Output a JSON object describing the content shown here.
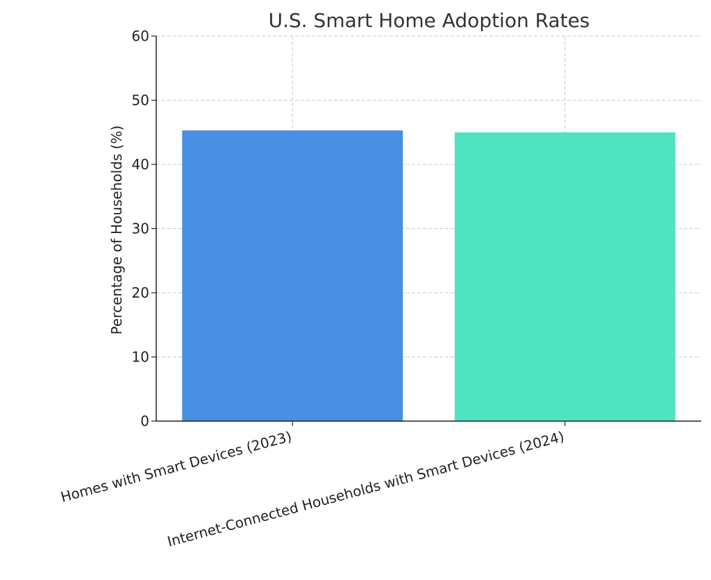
{
  "chart_data": {
    "type": "bar",
    "title": "U.S. Smart Home Adoption Rates",
    "xlabel": "",
    "ylabel": "Percentage of Households (%)",
    "categories": [
      "Homes with Smart Devices (2023)",
      "Internet-Connected Households with Smart Devices (2024)"
    ],
    "values": [
      45.3,
      45.0
    ],
    "bar_colors": [
      "#4a90e2",
      "#50e3c2"
    ],
    "ylim": [
      0,
      60
    ],
    "yticks": [
      0,
      10,
      20,
      30,
      40,
      50,
      60
    ],
    "grid": true,
    "legend": null
  }
}
